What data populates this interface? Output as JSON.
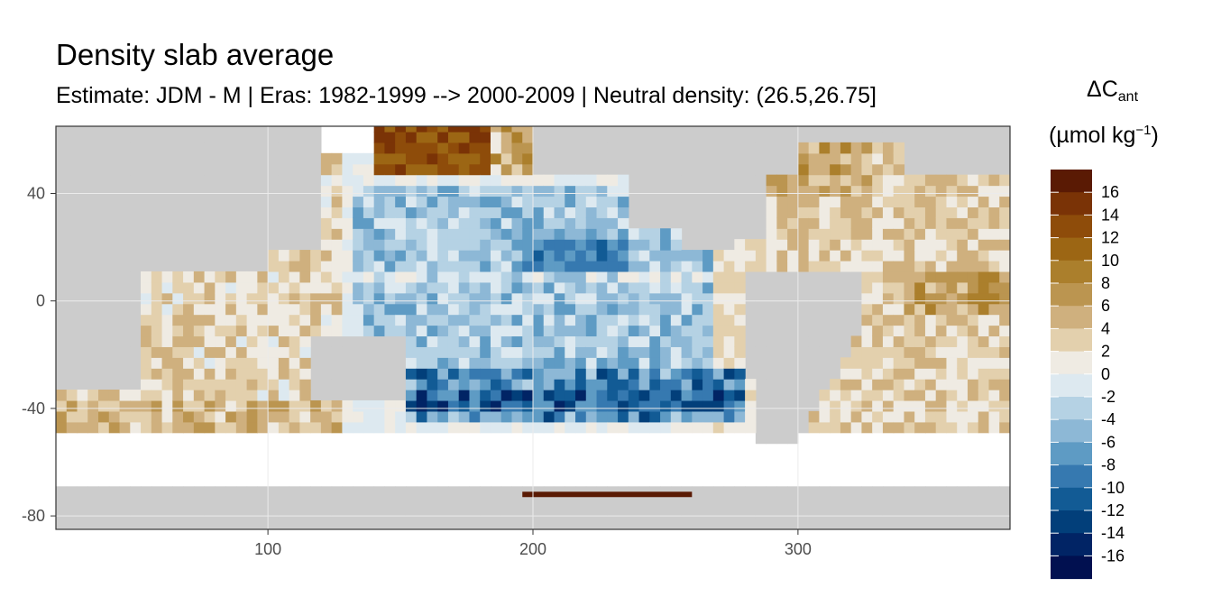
{
  "chart_data": {
    "type": "heatmap",
    "title": "Density slab average",
    "subtitle": "Estimate: JDM - M | Eras: 1982-1999 --> 2000-2009 | Neutral density: (26.5,26.75]",
    "xlabel": "",
    "ylabel": "",
    "xlim": [
      20,
      380
    ],
    "ylim": [
      -85,
      65
    ],
    "x_ticks": [
      "100",
      "200",
      "300"
    ],
    "x_tick_values": [
      100,
      200,
      300
    ],
    "y_ticks": [
      "40",
      "0",
      "-40",
      "-80"
    ],
    "y_tick_values": [
      40,
      0,
      -40,
      -80
    ],
    "grid": true,
    "legend": {
      "title_main": "ΔC",
      "title_sub": "ant",
      "units_prefix": "(µmol kg",
      "units_sup": "−1",
      "units_suffix": ")",
      "placement": "right",
      "labels": [
        "16",
        "14",
        "12",
        "10",
        "8",
        "6",
        "4",
        "2",
        "0",
        "-2",
        "-4",
        "-6",
        "-8",
        "-10",
        "-12",
        "-14",
        "-16"
      ],
      "colors": [
        "#5a1a04",
        "#7a3306",
        "#8e4c0a",
        "#9c6614",
        "#ab7f2c",
        "#bb9550",
        "#cfb07e",
        "#e3d0ad",
        "#efebe3",
        "#dde9f0",
        "#b5d2e4",
        "#8db8d6",
        "#5e9bc4",
        "#3679b0",
        "#125b95",
        "#023f7a",
        "#012465",
        "#011050"
      ]
    },
    "regions": {
      "land_color": "#cccccc",
      "nodata_color": "#ffffff",
      "north_pacific_positive": [
        12,
        16
      ],
      "south_pacific_negative": [
        -14,
        -6
      ],
      "indian_ocean_positive": [
        2,
        6
      ],
      "atlantic_positive": [
        2,
        8
      ]
    }
  }
}
